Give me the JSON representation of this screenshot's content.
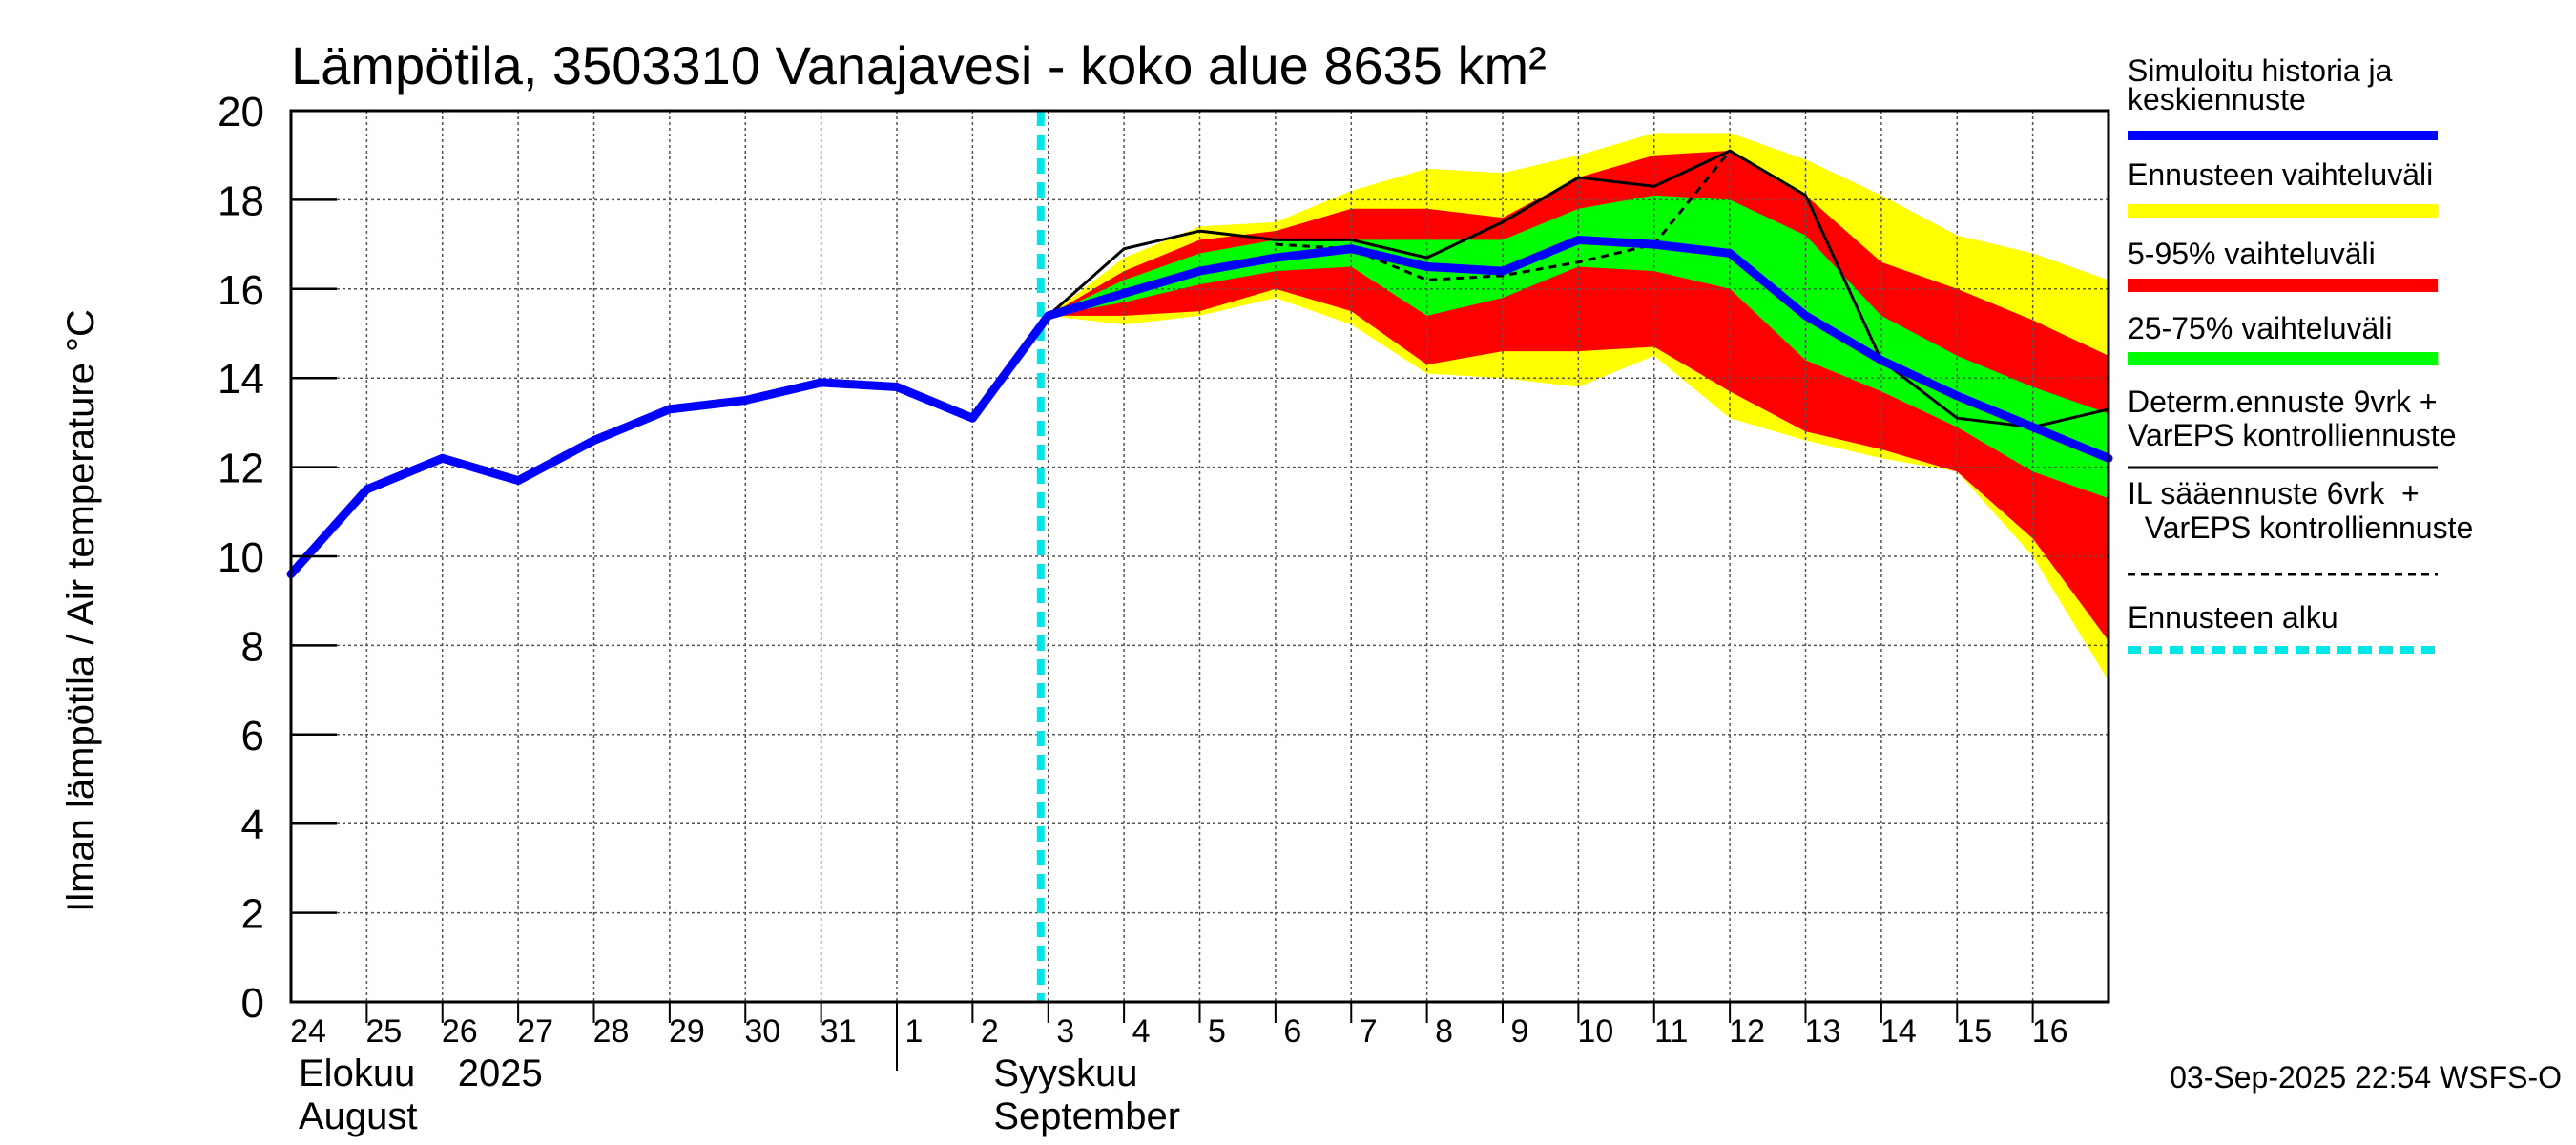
{
  "chart_data": {
    "type": "line",
    "title": "Lämpötila, 3503310 Vanajavesi - koko alue 8635 km²",
    "ylabel": "Ilman lämpötila / Air temperature    °C",
    "ylim": [
      0,
      20
    ],
    "yticks": [
      0,
      2,
      4,
      6,
      8,
      10,
      12,
      14,
      16,
      18,
      20
    ],
    "xlim": [
      0,
      24
    ],
    "grid": true,
    "day_ticks": [
      {
        "x": 0,
        "label": "24"
      },
      {
        "x": 1,
        "label": "25"
      },
      {
        "x": 2,
        "label": "26"
      },
      {
        "x": 3,
        "label": "27"
      },
      {
        "x": 4,
        "label": "28"
      },
      {
        "x": 5,
        "label": "29"
      },
      {
        "x": 6,
        "label": "30"
      },
      {
        "x": 7,
        "label": "31"
      },
      {
        "x": 8,
        "label": "1"
      },
      {
        "x": 9,
        "label": "2"
      },
      {
        "x": 10,
        "label": "3"
      },
      {
        "x": 11,
        "label": "4"
      },
      {
        "x": 12,
        "label": "5"
      },
      {
        "x": 13,
        "label": "6"
      },
      {
        "x": 14,
        "label": "7"
      },
      {
        "x": 15,
        "label": "8"
      },
      {
        "x": 16,
        "label": "9"
      },
      {
        "x": 17,
        "label": "10"
      },
      {
        "x": 18,
        "label": "11"
      },
      {
        "x": 19,
        "label": "12"
      },
      {
        "x": 20,
        "label": "13"
      },
      {
        "x": 21,
        "label": "14"
      },
      {
        "x": 22,
        "label": "15"
      },
      {
        "x": 23,
        "label": "16"
      }
    ],
    "month_labels": [
      {
        "x": 0,
        "line1": "Elokuu    2025",
        "line2": "August"
      },
      {
        "x": 9,
        "line1": "Syyskuu",
        "line2": "September"
      }
    ],
    "month_divider_x": 8,
    "forecast_start_x": 9.9,
    "series": [
      {
        "name": "Simuloitu historia ja keskiennuste",
        "color": "#0000ff",
        "points": [
          [
            0,
            9.6
          ],
          [
            1,
            11.5
          ],
          [
            2,
            12.2
          ],
          [
            3,
            11.7
          ],
          [
            4,
            12.6
          ],
          [
            5,
            13.3
          ],
          [
            6,
            13.5
          ],
          [
            7,
            13.9
          ],
          [
            8,
            13.8
          ],
          [
            9,
            13.1
          ],
          [
            10,
            15.4
          ],
          [
            11,
            15.9
          ],
          [
            12,
            16.4
          ],
          [
            13,
            16.7
          ],
          [
            14,
            16.9
          ],
          [
            15,
            16.5
          ],
          [
            16,
            16.4
          ],
          [
            17,
            17.1
          ],
          [
            18,
            17.0
          ],
          [
            19,
            16.8
          ],
          [
            20,
            15.4
          ],
          [
            21,
            14.4
          ],
          [
            22,
            13.6
          ],
          [
            23,
            12.9
          ],
          [
            24,
            12.2
          ]
        ]
      },
      {
        "name": "Determ.ennuste 9vrk + VarEPS kontrolliennuste",
        "color": "#000000",
        "points": [
          [
            8,
            13.8
          ],
          [
            9,
            13.1
          ],
          [
            10,
            15.4
          ],
          [
            11,
            16.9
          ],
          [
            12,
            17.3
          ],
          [
            13,
            17.1
          ],
          [
            14,
            17.1
          ],
          [
            15,
            16.7
          ],
          [
            16,
            17.5
          ],
          [
            17,
            18.5
          ],
          [
            18,
            18.3
          ],
          [
            19,
            19.1
          ],
          [
            20,
            18.1
          ],
          [
            21,
            14.4
          ],
          [
            22,
            13.1
          ],
          [
            23,
            12.9
          ],
          [
            24,
            13.3
          ]
        ]
      },
      {
        "name": "IL sääennuste 6vrk + VarEPS kontrolliennuste",
        "color": "#000000",
        "points": [
          [
            13,
            17.0
          ],
          [
            14,
            16.9
          ],
          [
            15,
            16.2
          ],
          [
            16,
            16.3
          ],
          [
            17,
            16.6
          ],
          [
            18,
            17.0
          ],
          [
            19,
            19.1
          ]
        ]
      }
    ],
    "bands": [
      {
        "name": "Ennusteen vaihteluväli",
        "color": "#ffff00",
        "x": [
          10,
          11,
          12,
          13,
          14,
          15,
          16,
          17,
          18,
          19,
          20,
          21,
          22,
          23,
          24
        ],
        "upper": [
          15.4,
          16.7,
          17.4,
          17.5,
          18.2,
          18.7,
          18.6,
          19.0,
          19.5,
          19.5,
          18.9,
          18.1,
          17.2,
          16.8,
          16.2
        ],
        "lower": [
          15.4,
          15.2,
          15.4,
          15.8,
          15.2,
          14.1,
          14.0,
          13.8,
          14.5,
          13.1,
          12.6,
          12.2,
          11.9,
          10.0,
          7.2
        ]
      },
      {
        "name": "5-95% vaihteluväli",
        "color": "#ff0000",
        "x": [
          10,
          11,
          12,
          13,
          14,
          15,
          16,
          17,
          18,
          19,
          20,
          21,
          22,
          23,
          24
        ],
        "upper": [
          15.4,
          16.4,
          17.1,
          17.3,
          17.8,
          17.8,
          17.6,
          18.5,
          19.0,
          19.1,
          18.1,
          16.6,
          16.0,
          15.3,
          14.5
        ],
        "lower": [
          15.4,
          15.4,
          15.5,
          16.0,
          15.5,
          14.3,
          14.6,
          14.6,
          14.7,
          13.7,
          12.8,
          12.4,
          11.9,
          10.4,
          8.1
        ]
      },
      {
        "name": "25-75% vaihteluväli",
        "color": "#00ff00",
        "x": [
          10,
          11,
          12,
          13,
          14,
          15,
          16,
          17,
          18,
          19,
          20,
          21,
          22,
          23,
          24
        ],
        "upper": [
          15.4,
          16.2,
          16.8,
          17.1,
          17.1,
          17.1,
          17.1,
          17.8,
          18.1,
          18.0,
          17.2,
          15.4,
          14.5,
          13.8,
          13.2
        ],
        "lower": [
          15.4,
          15.7,
          16.1,
          16.4,
          16.5,
          15.4,
          15.8,
          16.5,
          16.4,
          16.0,
          14.4,
          13.7,
          12.9,
          11.9,
          11.3
        ]
      }
    ],
    "legend": [
      {
        "line1": "Simuloitu historia ja",
        "line2": "keskiennuste",
        "style": "solid",
        "color": "#0000ff"
      },
      {
        "line1": "Ennusteen vaihteluväli",
        "line2": "",
        "style": "solid",
        "color": "#ffff00"
      },
      {
        "line1": "5-95% vaihteluväli",
        "line2": "",
        "style": "solid",
        "color": "#ff0000"
      },
      {
        "line1": "25-75% vaihteluväli",
        "line2": "",
        "style": "solid",
        "color": "#00ff00"
      },
      {
        "line1": "Determ.ennuste 9vrk +",
        "line2": "VarEPS kontrolliennuste",
        "style": "thin",
        "color": "#000000"
      },
      {
        "line1": "IL sääennuste 6vrk  +",
        "line2": "  VarEPS kontrolliennuste",
        "style": "dashed",
        "color": "#000000"
      },
      {
        "line1": "Ennusteen alku",
        "line2": "",
        "style": "dotted",
        "color": "#00e5e5"
      }
    ],
    "footer": "03-Sep-2025 22:54 WSFS-O"
  }
}
